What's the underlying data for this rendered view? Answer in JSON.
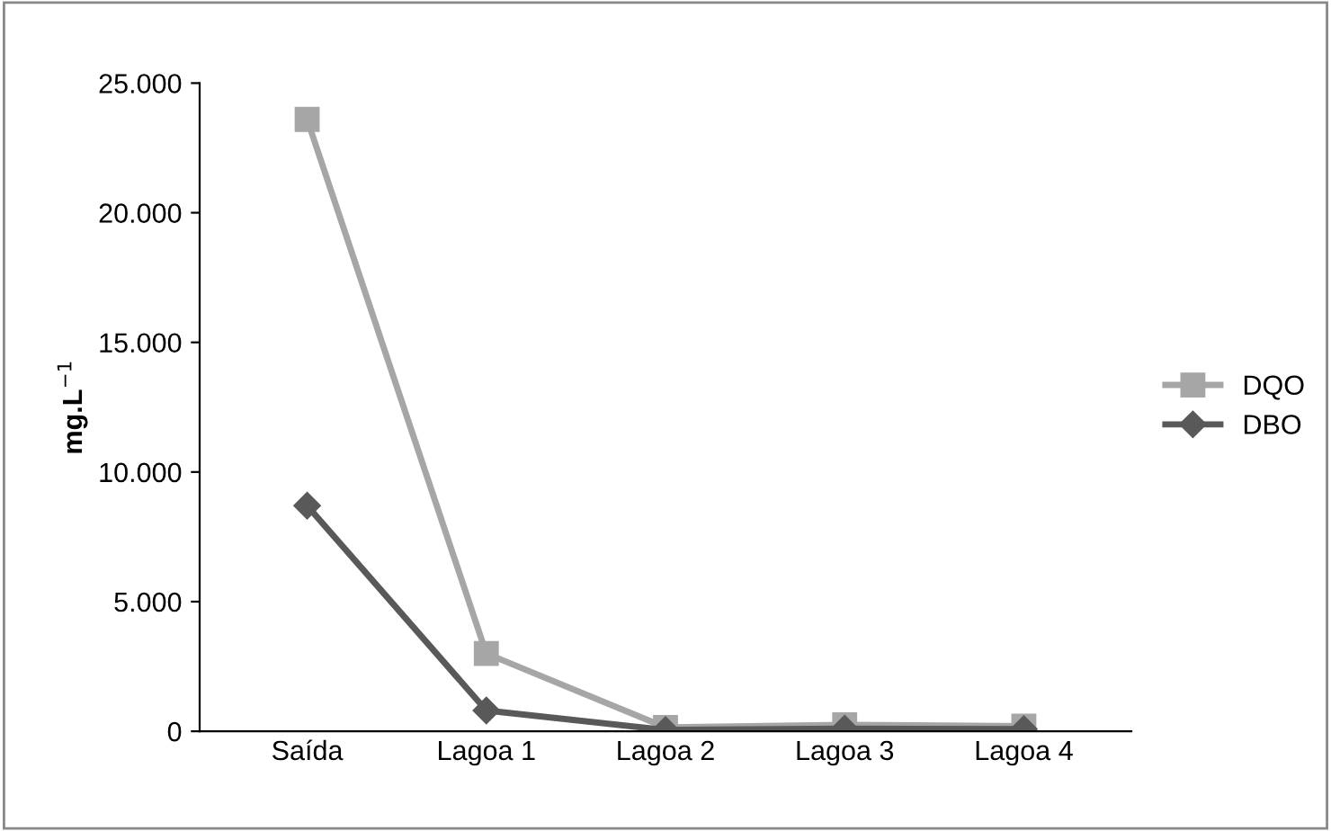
{
  "chart_data": {
    "type": "line",
    "ylabel": "mg.L$^{−1}$",
    "categories": [
      "Saída",
      "Lagoa 1",
      "Lagoa 2",
      "Lagoa 3",
      "Lagoa 4"
    ],
    "series": [
      {
        "name": "DQO",
        "color": "#a6a6a6",
        "marker": "square",
        "values": [
          23600,
          3000,
          150,
          250,
          200
        ]
      },
      {
        "name": "DBO",
        "color": "#595959",
        "marker": "diamond",
        "values": [
          8700,
          800,
          50,
          100,
          80
        ]
      }
    ],
    "ylim": [
      0,
      25000
    ],
    "yticks": [
      0,
      {
        "value": 5000,
        "label": "5.000"
      },
      {
        "value": 10000,
        "label": "10.000"
      },
      {
        "value": 15000,
        "label": "15.000"
      },
      {
        "value": 20000,
        "label": "20.000"
      },
      {
        "value": 25000,
        "label": "25.000"
      }
    ],
    "grid": false,
    "legend": "right"
  }
}
